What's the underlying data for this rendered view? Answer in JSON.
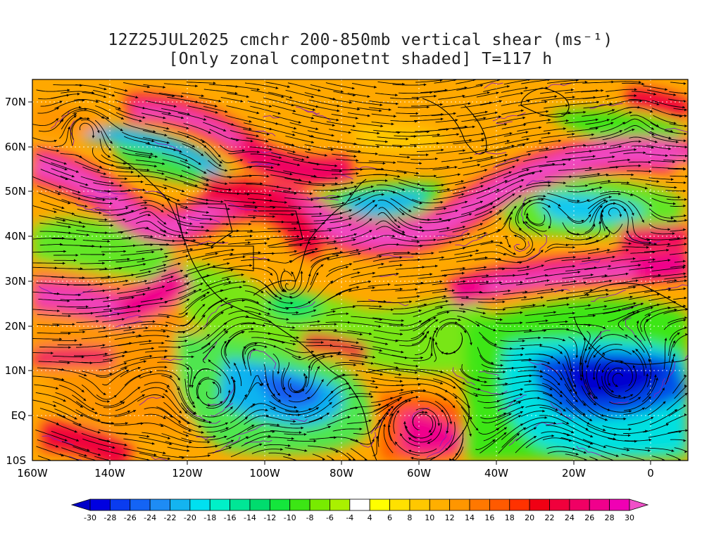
{
  "title": {
    "line1": "12Z25JUL2025 cmchr 200-850mb vertical shear (ms⁻¹)",
    "line2": "[Only zonal componetnt shaded] T=117 h"
  },
  "map": {
    "lat_labels": [
      "70N",
      "60N",
      "50N",
      "40N",
      "30N",
      "20N",
      "10N",
      "EQ",
      "10S"
    ],
    "lon_labels": [
      "160W",
      "140W",
      "120W",
      "100W",
      "80W",
      "60W",
      "40W",
      "20W",
      "0"
    ]
  },
  "colorbar": {
    "tick_labels": [
      "-30",
      "-28",
      "-26",
      "-24",
      "-22",
      "-20",
      "-18",
      "-16",
      "-14",
      "-12",
      "-10",
      "-8",
      "-6",
      "-4",
      "4",
      "6",
      "8",
      "10",
      "12",
      "14",
      "16",
      "18",
      "20",
      "22",
      "24",
      "26",
      "28",
      "30"
    ],
    "colors": [
      "#0000e0",
      "#0a3cf0",
      "#1464f5",
      "#1e8cf5",
      "#14b4f0",
      "#00e0f0",
      "#00f0c8",
      "#00e696",
      "#00dc6e",
      "#14e63c",
      "#3ce614",
      "#78eb00",
      "#aaf000",
      "#ffffff",
      "#ffff00",
      "#ffe100",
      "#ffc800",
      "#ffaf00",
      "#ff9600",
      "#ff7800",
      "#ff5a00",
      "#ff3200",
      "#f00014",
      "#f0003c",
      "#f00064",
      "#f0008c",
      "#f000b4"
    ],
    "under_color": "#0000c8",
    "over_color": "#f050c8"
  },
  "legend_colors": {
    "frame": "#000000",
    "grid": "#ffffff",
    "coast": "#000000",
    "contour": "#8c1eb4",
    "streamline": "#000000"
  }
}
